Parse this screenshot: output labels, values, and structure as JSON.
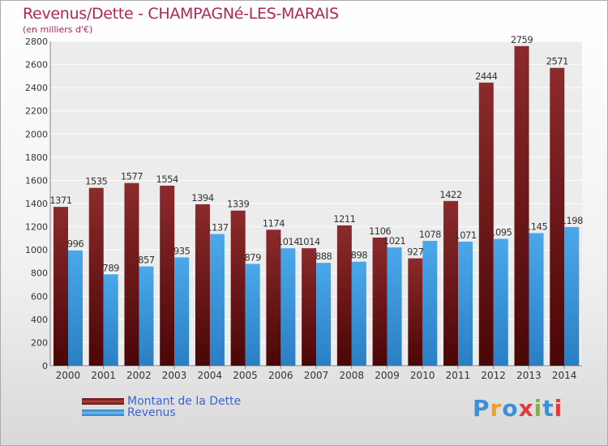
{
  "title": "Revenus/Dette - CHAMPAGNé-LES-MARAIS",
  "subtitle": "(en milliers d'€)",
  "legend": {
    "debt_label": "Montant de la Dette",
    "revenue_label": "Revenus"
  },
  "logo": {
    "letters": [
      "P",
      "r",
      "o",
      "x",
      "i",
      "t",
      "i"
    ]
  },
  "colors": {
    "debt": "#7a1a1c",
    "revenue": "#3a9ae0",
    "title": "#b0265a",
    "legend_text": "#3b63d6",
    "axis_text": "#333333"
  },
  "chart_data": {
    "type": "bar",
    "categories": [
      "2000",
      "2001",
      "2002",
      "2003",
      "2004",
      "2005",
      "2006",
      "2007",
      "2008",
      "2009",
      "2010",
      "2011",
      "2012",
      "2013",
      "2014"
    ],
    "series": [
      {
        "name": "Montant de la Dette",
        "values": [
          1371,
          1535,
          1577,
          1554,
          1394,
          1339,
          1174,
          1014,
          1211,
          1106,
          927,
          1422,
          2444,
          2759,
          2571
        ]
      },
      {
        "name": "Revenus",
        "values": [
          996,
          789,
          857,
          935,
          1137,
          879,
          1014,
          888,
          898,
          1021,
          1078,
          1071,
          1095,
          1145,
          1198
        ]
      }
    ],
    "ylim": [
      0,
      2800
    ],
    "yticks": [
      0,
      200,
      400,
      600,
      800,
      1000,
      1200,
      1400,
      1600,
      1800,
      2000,
      2200,
      2400,
      2600,
      2800
    ],
    "grid": true,
    "legend_position": "bottom-left"
  }
}
